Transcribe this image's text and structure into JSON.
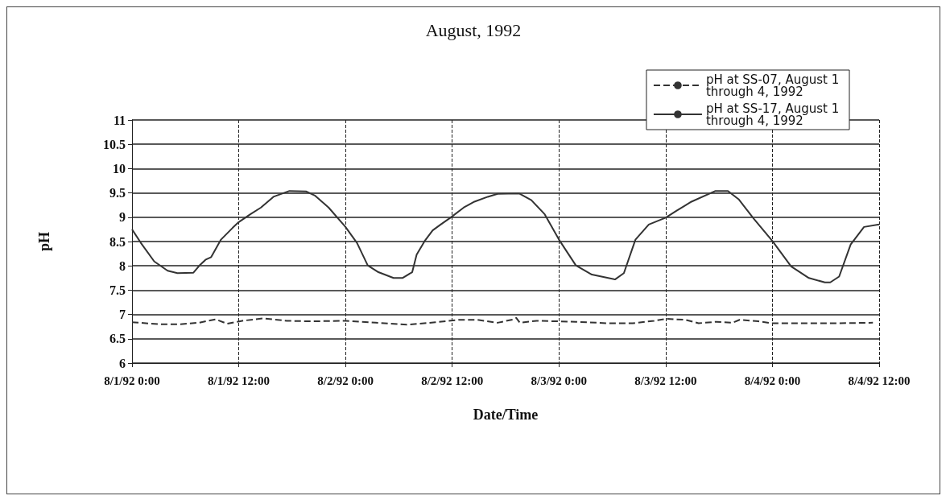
{
  "chart_data": {
    "type": "line",
    "title": "August, 1992",
    "xlabel": "Date/Time",
    "ylabel": "pH",
    "xlim": [
      "1992-08-01T00:00",
      "1992-08-04T12:00"
    ],
    "xticks": [
      {
        "value": "1992-08-01T00:00",
        "label": "8/1/92 0:00"
      },
      {
        "value": "1992-08-01T12:00",
        "label": "8/1/92 12:00"
      },
      {
        "value": "1992-08-02T00:00",
        "label": "8/2/92 0:00"
      },
      {
        "value": "1992-08-02T12:00",
        "label": "8/2/92 12:00"
      },
      {
        "value": "1992-08-03T00:00",
        "label": "8/3/92 0:00"
      },
      {
        "value": "1992-08-03T12:00",
        "label": "8/3/92 12:00"
      },
      {
        "value": "1992-08-04T00:00",
        "label": "8/4/92 0:00"
      },
      {
        "value": "1992-08-04T12:00",
        "label": "8/4/92 12:00"
      }
    ],
    "ylim": [
      6,
      11
    ],
    "yticks": [
      6,
      6.5,
      7,
      7.5,
      8,
      8.5,
      9,
      9.5,
      10,
      10.5,
      11
    ],
    "grid": true,
    "legend": "top right",
    "marker": "none",
    "series": [
      {
        "name": "pH at SS-07, August 1 through 4, 1992",
        "color": "#333333",
        "line_style": "dashed",
        "x": [
          "1992-08-01T00:00",
          "1992-08-01T03:06",
          "1992-08-01T05:24",
          "1992-08-01T07:30",
          "1992-08-01T09:24",
          "1992-08-01T10:42",
          "1992-08-01T12:24",
          "1992-08-01T14:48",
          "1992-08-01T17:24",
          "1992-08-01T20:00",
          "1992-08-02T00:00",
          "1992-08-02T03:24",
          "1992-08-02T06:54",
          "1992-08-02T10:06",
          "1992-08-02T12:42",
          "1992-08-02T14:48",
          "1992-08-02T17:06",
          "1992-08-02T18:54",
          "1992-08-02T19:12",
          "1992-08-02T19:36",
          "1992-08-02T21:30",
          "1992-08-03T01:54",
          "1992-08-03T05:24",
          "1992-08-03T08:18",
          "1992-08-03T10:42",
          "1992-08-03T12:00",
          "1992-08-03T14:12",
          "1992-08-03T15:42",
          "1992-08-03T17:42",
          "1992-08-03T19:30",
          "1992-08-03T20:18",
          "1992-08-03T22:24",
          "1992-08-03T23:54",
          "1992-08-04T02:48",
          "1992-08-04T07:12",
          "1992-08-04T11:18"
        ],
        "values": [
          6.84,
          6.8,
          6.8,
          6.83,
          6.9,
          6.81,
          6.87,
          6.92,
          6.87,
          6.86,
          6.87,
          6.83,
          6.79,
          6.84,
          6.89,
          6.89,
          6.83,
          6.9,
          6.93,
          6.83,
          6.87,
          6.85,
          6.82,
          6.82,
          6.87,
          6.91,
          6.89,
          6.82,
          6.85,
          6.83,
          6.89,
          6.86,
          6.82,
          6.82,
          6.82,
          6.83
        ]
      },
      {
        "name": "pH at SS-17, August 1 through 4, 1992",
        "color": "#333333",
        "line_style": "solid",
        "x": [
          "1992-08-01T00:00",
          "1992-08-01T01:00",
          "1992-08-01T02:30",
          "1992-08-01T04:00",
          "1992-08-01T05:06",
          "1992-08-01T06:54",
          "1992-08-01T07:36",
          "1992-08-01T08:18",
          "1992-08-01T08:54",
          "1992-08-01T10:00",
          "1992-08-01T11:18",
          "1992-08-01T12:00",
          "1992-08-01T13:18",
          "1992-08-01T14:30",
          "1992-08-01T15:54",
          "1992-08-01T17:42",
          "1992-08-01T19:36",
          "1992-08-01T20:36",
          "1992-08-01T22:06",
          "1992-08-02T00:00",
          "1992-08-02T01:18",
          "1992-08-02T02:30",
          "1992-08-02T03:42",
          "1992-08-02T05:24",
          "1992-08-02T06:24",
          "1992-08-02T07:30",
          "1992-08-02T08:00",
          "1992-08-02T08:54",
          "1992-08-02T09:48",
          "1992-08-02T10:42",
          "1992-08-02T11:48",
          "1992-08-02T13:18",
          "1992-08-02T14:30",
          "1992-08-02T16:00",
          "1992-08-02T17:06",
          "1992-08-02T19:30",
          "1992-08-02T20:54",
          "1992-08-02T22:24",
          "1992-08-03T00:00",
          "1992-08-03T01:54",
          "1992-08-03T03:42",
          "1992-08-03T06:18",
          "1992-08-03T07:18",
          "1992-08-03T08:36",
          "1992-08-03T10:06",
          "1992-08-03T12:00",
          "1992-08-03T13:12",
          "1992-08-03T14:54",
          "1992-08-03T17:36",
          "1992-08-03T19:00",
          "1992-08-03T20:12",
          "1992-08-03T21:54",
          "1992-08-04T00:00",
          "1992-08-04T02:06",
          "1992-08-04T04:06",
          "1992-08-04T05:54",
          "1992-08-04T06:30",
          "1992-08-04T07:30",
          "1992-08-04T08:48",
          "1992-08-04T10:18",
          "1992-08-04T12:00"
        ],
        "values": [
          8.75,
          8.47,
          8.09,
          7.9,
          7.85,
          7.86,
          8.01,
          8.13,
          8.18,
          8.54,
          8.78,
          8.9,
          9.06,
          9.2,
          9.42,
          9.54,
          9.53,
          9.44,
          9.2,
          8.8,
          8.47,
          8.01,
          7.87,
          7.75,
          7.75,
          7.87,
          8.23,
          8.51,
          8.73,
          8.85,
          8.99,
          9.2,
          9.32,
          9.42,
          9.48,
          9.49,
          9.35,
          9.06,
          8.54,
          8.01,
          7.82,
          7.72,
          7.85,
          8.54,
          8.85,
          8.99,
          9.13,
          9.32,
          9.54,
          9.54,
          9.37,
          8.97,
          8.51,
          7.99,
          7.75,
          7.66,
          7.66,
          7.78,
          8.44,
          8.8,
          8.85
        ]
      }
    ]
  }
}
